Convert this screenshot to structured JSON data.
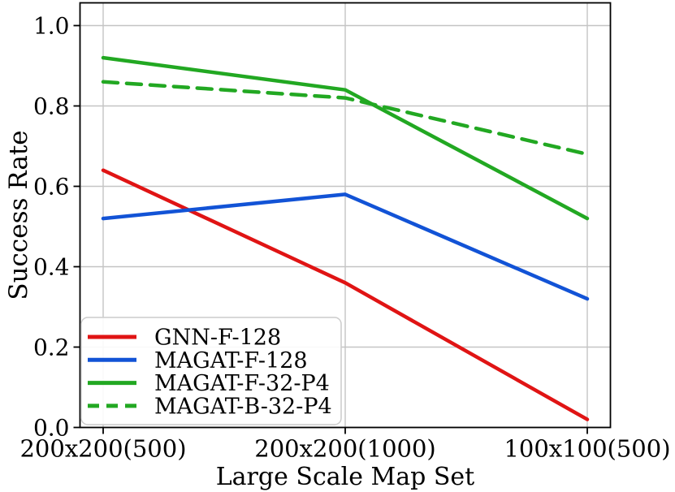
{
  "chart_data": {
    "type": "line",
    "title": "",
    "xlabel": "Large Scale Map Set",
    "ylabel": "Success Rate",
    "categories": [
      "200x200(500)",
      "200x200(1000)",
      "100x100(500)"
    ],
    "y_ticks": [
      "0.0",
      "0.2",
      "0.4",
      "0.6",
      "0.8",
      "1.0"
    ],
    "ylim": [
      0.0,
      1.06
    ],
    "grid": true,
    "grid_color": "#c4c4c4",
    "legend_position": "lower-left",
    "series": [
      {
        "name": "GNN-F-128",
        "color": "#e01414",
        "style": "solid",
        "values": [
          0.64,
          0.36,
          0.02
        ]
      },
      {
        "name": "MAGAT-F-128",
        "color": "#1253d6",
        "style": "solid",
        "values": [
          0.52,
          0.58,
          0.32
        ]
      },
      {
        "name": "MAGAT-F-32-P4",
        "color": "#22a822",
        "style": "solid",
        "values": [
          0.92,
          0.84,
          0.52
        ]
      },
      {
        "name": "MAGAT-B-32-P4",
        "color": "#22a822",
        "style": "dashed",
        "values": [
          0.86,
          0.82,
          0.68
        ]
      }
    ]
  }
}
